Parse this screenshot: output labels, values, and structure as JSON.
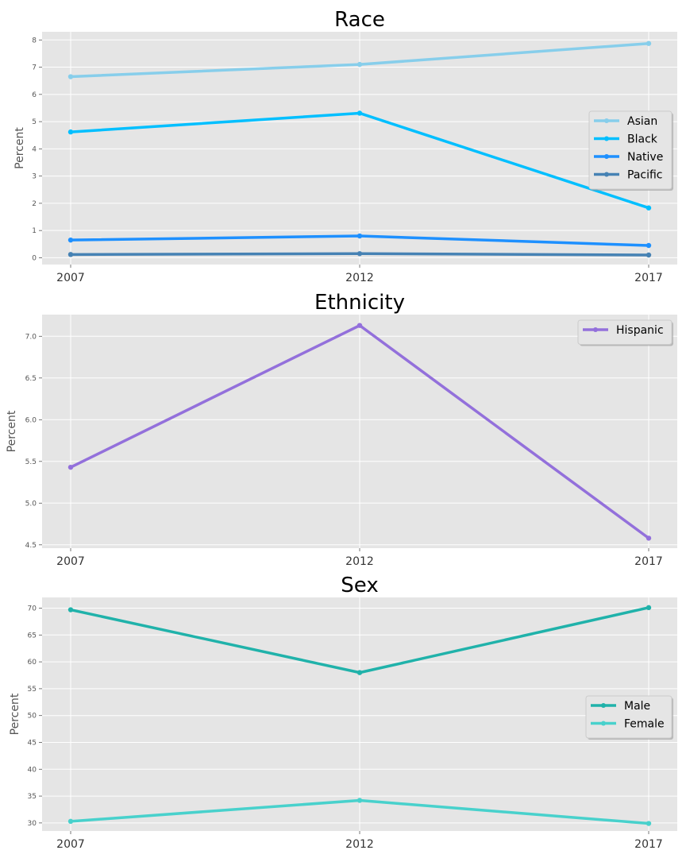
{
  "chart_data": [
    {
      "type": "line",
      "title": "Race",
      "ylabel": "Percent",
      "x": [
        "2007",
        "2012",
        "2017"
      ],
      "ylim": [
        -0.25,
        8.3
      ],
      "yticks": [
        0,
        1,
        2,
        3,
        4,
        5,
        6,
        7,
        8
      ],
      "grid": true,
      "legend_position": "right",
      "series": [
        {
          "name": "Asian",
          "values": [
            6.65,
            7.1,
            7.87
          ],
          "color": "#87ceeb"
        },
        {
          "name": "Black",
          "values": [
            4.62,
            5.31,
            1.83
          ],
          "color": "#00bfff"
        },
        {
          "name": "Native",
          "values": [
            0.65,
            0.8,
            0.45
          ],
          "color": "#1e90ff"
        },
        {
          "name": "Pacific",
          "values": [
            0.12,
            0.15,
            0.1
          ],
          "color": "#4682b4"
        }
      ]
    },
    {
      "type": "line",
      "title": "Ethnicity",
      "ylabel": "Percent",
      "x": [
        "2007",
        "2012",
        "2017"
      ],
      "ylim": [
        4.46,
        7.26
      ],
      "yticks": [
        "4.5",
        "5.0",
        "5.5",
        "6.0",
        "6.5",
        "7.0"
      ],
      "grid": true,
      "legend_position": "top-right",
      "series": [
        {
          "name": "Hispanic",
          "values": [
            5.43,
            7.13,
            4.58
          ],
          "color": "#9370db"
        }
      ]
    },
    {
      "type": "line",
      "title": "Sex",
      "ylabel": "Percent",
      "x": [
        "2007",
        "2012",
        "2017"
      ],
      "ylim": [
        28.5,
        72.0
      ],
      "yticks": [
        30,
        35,
        40,
        45,
        50,
        55,
        60,
        65,
        70
      ],
      "grid": true,
      "legend_position": "right",
      "series": [
        {
          "name": "Male",
          "values": [
            69.7,
            58.0,
            70.1
          ],
          "color": "#20b2aa"
        },
        {
          "name": "Female",
          "values": [
            30.3,
            34.2,
            29.9
          ],
          "color": "#48d1cc"
        }
      ]
    }
  ]
}
